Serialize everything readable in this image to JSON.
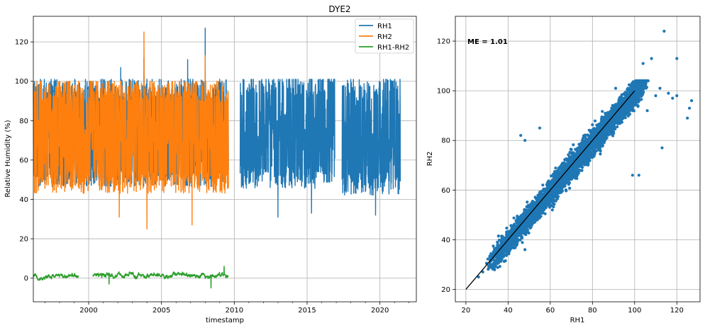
{
  "title": "DYE2",
  "chart_data": [
    {
      "type": "line",
      "title": "",
      "xlabel": "timestamp",
      "ylabel": "Relative Humidity (%)",
      "xlim": [
        1996.2,
        2022.5
      ],
      "ylim": [
        -12,
        133
      ],
      "xticks": [
        2000,
        2005,
        2010,
        2015,
        2020
      ],
      "yticks": [
        0,
        20,
        40,
        60,
        80,
        100,
        120
      ],
      "grid": true,
      "legend_position": "top-right",
      "series": [
        {
          "name": "RH1",
          "color": "#1f77b4",
          "segments": [
            {
              "start": 1996.2,
              "end": 2009.6,
              "low": 46,
              "high": 101,
              "center": 74
            },
            {
              "start": 2010.4,
              "end": 2016.9,
              "low": 42,
              "high": 101,
              "center": 75
            },
            {
              "start": 2017.4,
              "end": 2021.4,
              "low": 41,
              "high": 101,
              "center": 72
            }
          ],
          "spikes": [
            {
              "x": 2008.0,
              "y": 127
            },
            {
              "x": 2003.8,
              "y": 112
            },
            {
              "x": 2006.8,
              "y": 111
            },
            {
              "x": 2002.2,
              "y": 107
            },
            {
              "x": 2013.0,
              "y": 31
            },
            {
              "x": 2015.3,
              "y": 33
            },
            {
              "x": 2019.7,
              "y": 32
            }
          ]
        },
        {
          "name": "RH2",
          "color": "#ff7f0e",
          "segments": [
            {
              "start": 1996.2,
              "end": 2009.6,
              "low": 42,
              "high": 100,
              "center": 72
            }
          ],
          "spikes": [
            {
              "x": 2003.8,
              "y": 125
            },
            {
              "x": 2004.0,
              "y": 25
            },
            {
              "x": 2002.1,
              "y": 31
            },
            {
              "x": 2007.1,
              "y": 27
            },
            {
              "x": 2008.0,
              "y": 113
            }
          ]
        },
        {
          "name": "RH1-RH2",
          "color": "#2ca02c",
          "segments": [
            {
              "start": 1996.2,
              "end": 1999.3,
              "low": -1,
              "high": 3,
              "center": 1
            },
            {
              "start": 2000.3,
              "end": 2009.6,
              "low": -3,
              "high": 6,
              "center": 1.5
            }
          ],
          "spikes": [
            {
              "x": 2009.3,
              "y": 6
            },
            {
              "x": 2008.4,
              "y": -5
            },
            {
              "x": 2001.4,
              "y": -3
            }
          ]
        }
      ]
    },
    {
      "type": "scatter",
      "title": "",
      "xlabel": "RH1",
      "ylabel": "RH2",
      "xlim": [
        15,
        131
      ],
      "ylim": [
        15,
        130
      ],
      "xticks": [
        20,
        40,
        60,
        80,
        100,
        120
      ],
      "yticks": [
        20,
        40,
        60,
        80,
        100,
        120
      ],
      "grid": true,
      "annotation": "ME = 1.01",
      "point_color": "#1f77b4",
      "line_color": "#000000",
      "reference_line": {
        "x": [
          20,
          100
        ],
        "y": [
          20,
          100
        ]
      },
      "outliers": [
        [
          114,
          124
        ],
        [
          120,
          113
        ],
        [
          108,
          113
        ],
        [
          104,
          111
        ],
        [
          127,
          96
        ],
        [
          126,
          93
        ],
        [
          125,
          89
        ],
        [
          120,
          98
        ],
        [
          113,
          77
        ],
        [
          106,
          92
        ],
        [
          99,
          92
        ],
        [
          102,
          66
        ],
        [
          99,
          66
        ],
        [
          46,
          82
        ],
        [
          48,
          80
        ],
        [
          55,
          85
        ],
        [
          26,
          25
        ],
        [
          28,
          27
        ],
        [
          33,
          32
        ],
        [
          48,
          36
        ],
        [
          52,
          47
        ],
        [
          110,
          98
        ],
        [
          112,
          101
        ],
        [
          116,
          99
        ],
        [
          118,
          97
        ],
        [
          100,
          100
        ],
        [
          91,
          101
        ]
      ]
    }
  ]
}
